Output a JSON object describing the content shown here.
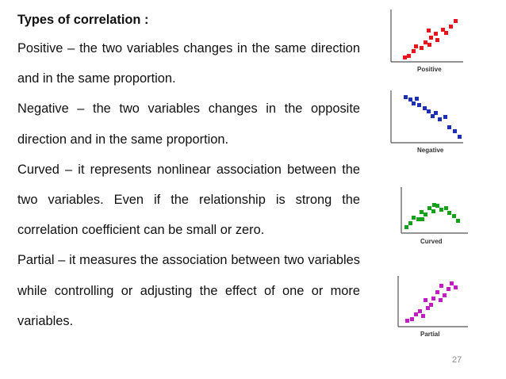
{
  "heading": "Types of correlation :",
  "paragraphs": [
    "Positive – the two variables changes in the same direction and in the same proportion.",
    "Negative – the two variables changes in the opposite direction and in the same proportion.",
    "Curved – it represents nonlinear association between the two variables. Even if the relationship is strong the correlation coefficient can be small or zero.",
    "Partial – it measures the association between two variables while controlling or adjusting the effect of one or more variables."
  ],
  "plots": [
    {
      "label": "Positive",
      "color": "#e8141e"
    },
    {
      "label": "Negative",
      "color": "#1c2fb5"
    },
    {
      "label": "Curved",
      "color": "#16a11a"
    },
    {
      "label": "Partial",
      "color": "#c21cc4"
    }
  ],
  "page_number": "27"
}
